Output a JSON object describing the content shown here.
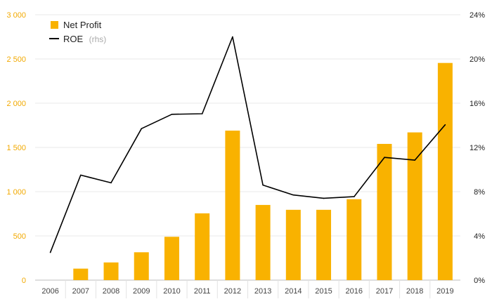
{
  "chart_data": {
    "type": "bar",
    "categories": [
      "2006",
      "2007",
      "2008",
      "2009",
      "2010",
      "2011",
      "2012",
      "2013",
      "2014",
      "2015",
      "2016",
      "2017",
      "2018",
      "2019"
    ],
    "series": [
      {
        "name": "Net Profit",
        "type": "bar",
        "axis": "left",
        "color": "#f9b200",
        "values": [
          0,
          130,
          200,
          315,
          490,
          755,
          1690,
          850,
          795,
          795,
          915,
          1540,
          1670,
          2455
        ]
      },
      {
        "name": "ROE",
        "legend_suffix": "(rhs)",
        "type": "line",
        "axis": "right",
        "color": "#000000",
        "values": [
          2.5,
          9.5,
          8.8,
          13.7,
          15.0,
          15.05,
          22.0,
          8.6,
          7.7,
          7.4,
          7.55,
          11.1,
          10.85,
          14.05
        ]
      }
    ],
    "ylim_left": [
      0,
      3000
    ],
    "yticks_left": [
      0,
      500,
      1000,
      1500,
      2000,
      2500,
      3000
    ],
    "ytick_labels_left": [
      "0",
      "500",
      "1 000",
      "1 500",
      "2 000",
      "2 500",
      "3 000"
    ],
    "ylim_right": [
      0,
      24
    ],
    "yticks_right": [
      0,
      4,
      8,
      12,
      16,
      20,
      24
    ],
    "ytick_labels_right": [
      "0%",
      "4%",
      "8%",
      "12%",
      "16%",
      "20%",
      "24%"
    ],
    "grid": true,
    "legend_position": "top-left"
  }
}
